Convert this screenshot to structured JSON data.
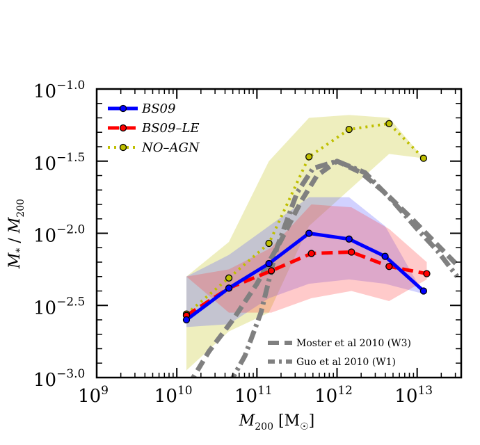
{
  "chart_data": {
    "type": "line",
    "xlabel": "M200 [M☉]",
    "ylabel": "M* / M200",
    "xscale": "log",
    "yscale": "log",
    "xlim_log10": [
      9.0,
      13.55
    ],
    "ylim_log10": [
      -3.0,
      -1.0
    ],
    "x_ticks": [
      {
        "base": "10",
        "exp": "9",
        "value": 9
      },
      {
        "base": "10",
        "exp": "10",
        "value": 10
      },
      {
        "base": "10",
        "exp": "11",
        "value": 11
      },
      {
        "base": "10",
        "exp": "12",
        "value": 12
      },
      {
        "base": "10",
        "exp": "13",
        "value": 13
      }
    ],
    "y_ticks": [
      {
        "base": "10",
        "exp": "−1.0",
        "value": -1.0
      },
      {
        "base": "10",
        "exp": "−1.5",
        "value": -1.5
      },
      {
        "base": "10",
        "exp": "−2.0",
        "value": -2.0
      },
      {
        "base": "10",
        "exp": "−2.5",
        "value": -2.5
      },
      {
        "base": "10",
        "exp": "−3.0",
        "value": -3.0
      }
    ],
    "series": [
      {
        "name": "BS09",
        "color": "#0000ff",
        "marker_color": "#0000ff",
        "style": "solid",
        "x_log10": [
          10.12,
          10.65,
          11.15,
          11.65,
          12.15,
          12.6,
          13.08
        ],
        "y_log10": [
          -2.6,
          -2.38,
          -2.21,
          -2.0,
          -2.04,
          -2.16,
          -2.4
        ],
        "band_lo_log10": [
          -2.65,
          -2.63,
          -2.45,
          -2.35,
          -2.32,
          -2.35,
          -2.42
        ],
        "band_hi_log10": [
          -2.3,
          -2.15,
          -1.95,
          -1.75,
          -1.75,
          -1.95,
          -2.42
        ]
      },
      {
        "name": "BS09–LE",
        "color": "#ff0000",
        "marker_color": "#ff0000",
        "style": "dashed",
        "x_log10": [
          10.12,
          10.65,
          11.18,
          11.68,
          12.18,
          12.65,
          13.12
        ],
        "y_log10": [
          -2.57,
          -2.38,
          -2.26,
          -2.14,
          -2.13,
          -2.23,
          -2.28
        ],
        "band_lo_log10": [
          -2.3,
          -2.55,
          -2.55,
          -2.45,
          -2.4,
          -2.47,
          -2.32
        ],
        "band_hi_log10": [
          -2.3,
          -2.25,
          -2.1,
          -1.8,
          -1.82,
          -1.97,
          -2.2
        ]
      },
      {
        "name": "NO–AGN",
        "color": "#bfbf00",
        "marker_color": "#bfbf00",
        "style": "dotted",
        "x_log10": [
          10.12,
          10.65,
          11.15,
          11.65,
          12.15,
          12.65,
          13.08
        ],
        "y_log10": [
          -2.56,
          -2.31,
          -2.07,
          -1.47,
          -1.28,
          -1.24,
          -1.48
        ],
        "band_lo_log10": [
          -2.95,
          -2.68,
          -2.55,
          -1.95,
          -1.7,
          -1.45,
          -1.48
        ],
        "band_hi_log10": [
          -2.3,
          -2.06,
          -1.5,
          -1.2,
          -1.18,
          -1.2,
          -1.48
        ]
      },
      {
        "name": "Moster et al 2010 (W3)",
        "color": "#808080",
        "style": "dashed",
        "x_log10": [
          10.15,
          10.4,
          10.7,
          11.0,
          11.3,
          11.55,
          11.75,
          12.0,
          12.3,
          12.6,
          12.9,
          13.2,
          13.5
        ],
        "y_log10": [
          -3.05,
          -2.82,
          -2.6,
          -2.35,
          -2.05,
          -1.78,
          -1.6,
          -1.5,
          -1.58,
          -1.72,
          -1.88,
          -2.05,
          -2.22
        ]
      },
      {
        "name": "Guo et al 2010 (W1)",
        "color": "#808080",
        "style": "dashdot",
        "x_log10": [
          10.65,
          10.85,
          11.05,
          11.25,
          11.5,
          11.7,
          12.0,
          12.35,
          12.7,
          13.0,
          13.25,
          13.5
        ],
        "y_log10": [
          -3.05,
          -2.85,
          -2.55,
          -2.1,
          -1.72,
          -1.55,
          -1.5,
          -1.58,
          -1.78,
          -1.97,
          -2.12,
          -2.3
        ]
      }
    ],
    "legend_upper_left": [
      "BS09",
      "BS09–LE",
      "NO–AGN"
    ],
    "legend_lower_right": [
      "Moster et al 2010 (W3)",
      "Guo et al 2010 (W1)"
    ]
  }
}
